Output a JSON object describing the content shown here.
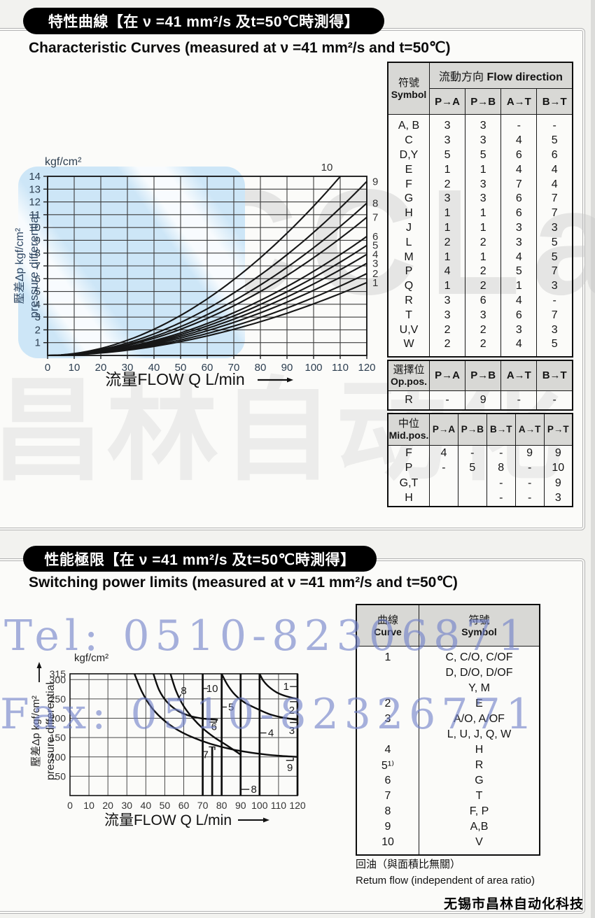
{
  "page": {
    "footer": "无锡市昌林自动化科技"
  },
  "watermarks": {
    "tel": "Tel: 0510-82306871",
    "fax": "Fax: 0510-82326771",
    "logo_en": "CCLair",
    "logo_cjk": "昌林自动化",
    "blue_text_color": "#7080c8",
    "patch_color": "#cde6f7"
  },
  "section1": {
    "pill": "特性曲線【在 ν =41 mm²/s 及t=50℃時測得】",
    "subtitle": "Characteristic Curves  (measured at ν =41 mm²/s and t=50℃)",
    "flow_table": {
      "symbol_zh": "符號",
      "symbol_en": "Symbol",
      "direction_zh": "流動方向",
      "direction_en": "Flow direction",
      "directions": [
        "P→A",
        "P→B",
        "A→T",
        "B→T"
      ],
      "rows": [
        [
          "A, B",
          "3",
          "3",
          "-",
          "-"
        ],
        [
          "C",
          "3",
          "3",
          "4",
          "5"
        ],
        [
          "D,Y",
          "5",
          "5",
          "6",
          "6"
        ],
        [
          "E",
          "1",
          "1",
          "4",
          "4"
        ],
        [
          "F",
          "2",
          "3",
          "7",
          "4"
        ],
        [
          "G",
          "3",
          "3",
          "6",
          "7"
        ],
        [
          "H",
          "1",
          "1",
          "6",
          "7"
        ],
        [
          "J",
          "1",
          "1",
          "3",
          "3"
        ],
        [
          "L",
          "2",
          "2",
          "3",
          "5"
        ],
        [
          "M",
          "1",
          "1",
          "4",
          "5"
        ],
        [
          "P",
          "4",
          "2",
          "5",
          "7"
        ],
        [
          "Q",
          "1",
          "2",
          "1",
          "3"
        ],
        [
          "R",
          "3",
          "6",
          "4",
          "-"
        ],
        [
          "T",
          "3",
          "3",
          "6",
          "7"
        ],
        [
          "U,V",
          "2",
          "2",
          "3",
          "3"
        ],
        [
          "W",
          "2",
          "2",
          "4",
          "5"
        ]
      ],
      "op_zh": "選擇位",
      "op_en": "Op.pos.",
      "op_directions": [
        "P→A",
        "P→B",
        "A→T",
        "B→T"
      ],
      "op_rows": [
        [
          "R",
          "-",
          "9",
          "-",
          "-"
        ]
      ],
      "mid_zh": "中位",
      "mid_en": "Mid.pos.",
      "mid_directions": [
        "P→A",
        "P→B",
        "B→T",
        "A→T",
        "P→T"
      ],
      "mid_rows": [
        [
          "F",
          "4",
          "-",
          "-",
          "9",
          "9"
        ],
        [
          "P",
          "-",
          "5",
          "8",
          "-",
          "10"
        ],
        [
          "G,T",
          "",
          "",
          "-",
          "-",
          "9"
        ],
        [
          "H",
          "",
          "",
          "-",
          "-",
          "3"
        ]
      ]
    }
  },
  "section2": {
    "pill": "性能極限【在 ν =41 mm²/s 及t=50℃時測得】",
    "subtitle": "Switching power limits  (measured at ν =41 mm²/s and t=50℃)",
    "curve_table": {
      "curve_zh": "曲線",
      "curve_en": "Curve",
      "symbol_zh": "符號",
      "symbol_en": "Symbol",
      "rows": [
        [
          "1",
          "C, C/O, C/OF"
        ],
        [
          "",
          "D, D/O, D/OF"
        ],
        [
          "",
          "Y, M"
        ],
        [
          "2",
          "E"
        ],
        [
          "3",
          "A/O, A/OF"
        ],
        [
          "",
          "L, U, J, Q, W"
        ],
        [
          "4",
          "H"
        ],
        [
          "5¹⁾",
          "R"
        ],
        [
          "6",
          "G"
        ],
        [
          "7",
          "T"
        ],
        [
          "8",
          "F, P"
        ],
        [
          "9",
          "A,B"
        ],
        [
          "10",
          "V"
        ]
      ],
      "note_zh": "回油（與面積比無關）",
      "note_en": "Retum flow (independent of area ratio)"
    }
  },
  "chart_data": [
    {
      "id": "characteristic-curves",
      "type": "line",
      "title": "Characteristic Curves",
      "xlabel": "流量FLOW Q L/min",
      "ylabel_unit": "kgf/cm²",
      "ylabel_zh": "壓差Δp kgf/cm²",
      "ylabel_en": "pressure differential",
      "xlim": [
        0,
        120
      ],
      "ylim": [
        0,
        14
      ],
      "xticks": [
        0,
        10,
        20,
        30,
        40,
        50,
        60,
        70,
        80,
        90,
        100,
        110,
        120
      ],
      "yticks": [
        1,
        2,
        3,
        4,
        5,
        6,
        7,
        8,
        9,
        10,
        11,
        12,
        13,
        14
      ],
      "exponent": 1.9,
      "x_samples": [
        0,
        20,
        40,
        60,
        80,
        100,
        120
      ],
      "series": [
        {
          "name": "1",
          "E120": 5.7,
          "values": [
            0,
            0.2,
            0.7,
            1.5,
            2.6,
            4.0,
            5.7
          ]
        },
        {
          "name": "2",
          "E120": 6.4,
          "values": [
            0,
            0.2,
            0.8,
            1.7,
            3.0,
            4.5,
            6.4
          ]
        },
        {
          "name": "3",
          "E120": 7.2,
          "values": [
            0,
            0.2,
            0.9,
            1.9,
            3.3,
            5.1,
            7.2
          ]
        },
        {
          "name": "4",
          "E120": 7.9,
          "values": [
            0,
            0.3,
            1.0,
            2.1,
            3.7,
            5.6,
            7.9
          ]
        },
        {
          "name": "5",
          "E120": 8.6,
          "values": [
            0,
            0.3,
            1.1,
            2.3,
            4.0,
            6.1,
            8.6
          ]
        },
        {
          "name": "6",
          "E120": 9.3,
          "values": [
            0,
            0.3,
            1.2,
            2.5,
            4.3,
            6.6,
            9.3
          ]
        },
        {
          "name": "7",
          "E120": 10.8,
          "values": [
            0,
            0.4,
            1.3,
            2.9,
            5.0,
            7.6,
            10.8
          ]
        },
        {
          "name": "8",
          "E120": 11.9,
          "values": [
            0,
            0.4,
            1.5,
            3.2,
            5.5,
            8.4,
            11.9
          ]
        },
        {
          "name": "9",
          "E120": 13.6,
          "values": [
            0,
            0.5,
            1.7,
            3.6,
            6.3,
            9.6,
            13.6
          ]
        },
        {
          "name": "10",
          "E120": 16.5,
          "clip": 14,
          "values": [
            0,
            0.5,
            2.0,
            4.4,
            7.6,
            11.7,
            14
          ]
        }
      ]
    },
    {
      "id": "switching-power-limits",
      "type": "line",
      "title": "Switching power limits",
      "xlabel": "流量FLOW Q L/min",
      "ylabel_unit": "kgf/cm²",
      "ylabel_zh": "壓差Δp kgf/cm²",
      "ylabel_en": "pressure differential",
      "xlim": [
        0,
        120
      ],
      "ylim": [
        0,
        315
      ],
      "xticks": [
        0,
        10,
        20,
        30,
        40,
        50,
        60,
        70,
        80,
        90,
        100,
        110,
        120
      ],
      "yticks": [
        50,
        100,
        150,
        200,
        250,
        300,
        315
      ],
      "vlines": [
        {
          "name": "10",
          "Q": 70,
          "p0": 0,
          "p1": 315
        },
        {
          "name": "7",
          "Q": 75,
          "p0": 0,
          "p1": 126
        },
        {
          "name": "5",
          "Q": 80,
          "p0": 0,
          "p1": 315
        },
        {
          "name": "8",
          "Q": 90,
          "p0": 0,
          "p1": 315
        },
        {
          "name": "4",
          "Q": 100,
          "p0": 0,
          "p1": 315
        },
        {
          "name": "limit",
          "Q": 120,
          "p0": 0,
          "p1": 315
        }
      ],
      "curves": [
        {
          "name": "9",
          "points": [
            [
              34,
              315
            ],
            [
              38,
              268
            ],
            [
              43,
              228
            ],
            [
              49,
              197
            ],
            [
              56,
              172
            ],
            [
              64,
              152
            ],
            [
              74,
              134
            ],
            [
              86,
              119
            ],
            [
              100,
              108
            ],
            [
              110,
              103
            ],
            [
              120,
              100
            ]
          ]
        },
        {
          "name": "8",
          "points": [
            [
              53,
              315
            ],
            [
              56,
              270
            ],
            [
              60,
              231
            ],
            [
              65,
              199
            ],
            [
              70,
              174
            ],
            [
              76,
              151
            ],
            [
              83,
              129
            ],
            [
              90,
              106
            ]
          ]
        },
        {
          "name": "6",
          "points": [
            [
              44,
              315
            ],
            [
              47,
              273
            ],
            [
              51,
              243
            ],
            [
              56,
              222
            ],
            [
              62,
              208
            ],
            [
              69,
              200
            ],
            [
              78,
              196
            ]
          ]
        },
        {
          "name": "3",
          "points": [
            [
              80,
              315
            ],
            [
              83,
              287
            ],
            [
              87,
              261
            ],
            [
              92,
              241
            ],
            [
              98,
              226
            ],
            [
              105,
              211
            ],
            [
              112,
              202
            ],
            [
              120,
              196
            ]
          ]
        },
        {
          "name": "1",
          "points": [
            [
              100,
              315
            ],
            [
              102,
              297
            ],
            [
              105,
              281
            ],
            [
              109,
              267
            ],
            [
              114,
              257
            ],
            [
              120,
              250
            ]
          ]
        }
      ],
      "labels": [
        {
          "text": "8",
          "Q": 60,
          "p": 272,
          "leader": [
            [
              58.6,
              262
            ],
            [
              56.8,
              247
            ]
          ]
        },
        {
          "text": "10",
          "Q": 75,
          "p": 277,
          "leader": [
            [
              72.7,
              277
            ],
            [
              70.2,
              277
            ]
          ]
        },
        {
          "text": "5",
          "Q": 85,
          "p": 229,
          "leader": [
            [
              82.7,
              229
            ],
            [
              80.2,
              229
            ]
          ]
        },
        {
          "text": "6",
          "Q": 76,
          "p": 178
        },
        {
          "text": "7",
          "Q": 71.5,
          "p": 106
        },
        {
          "text": "4",
          "Q": 106,
          "p": 162,
          "leader": [
            [
              103.6,
              162
            ],
            [
              100.2,
              162
            ]
          ]
        },
        {
          "text": "8",
          "Q": 97,
          "p": 16,
          "leader": [
            [
              94.6,
              16
            ],
            [
              90.2,
              16
            ]
          ]
        },
        {
          "text": "1",
          "Q": 114,
          "p": 282,
          "leader": [
            [
              116,
              282
            ],
            [
              119.8,
              282
            ]
          ]
        },
        {
          "text": "2",
          "Q": 117,
          "p": 221
        },
        {
          "text": "3",
          "Q": 117,
          "p": 168
        },
        {
          "text": "9",
          "Q": 116,
          "p": 72
        }
      ],
      "brackets": [
        [
          [
            116,
            243
          ],
          [
            119.8,
            243
          ],
          [
            119.8,
            248.5
          ]
        ],
        [
          [
            116,
            189
          ],
          [
            119.8,
            189
          ],
          [
            119.8,
            194.5
          ]
        ],
        [
          [
            114,
            91
          ],
          [
            117.8,
            91
          ],
          [
            117.8,
            98
          ]
        ],
        [
          [
            73.5,
            190
          ],
          [
            77.2,
            190
          ],
          [
            77.2,
            195.5
          ]
        ],
        [
          [
            73.2,
            126
          ],
          [
            76.4,
            126
          ],
          [
            76.4,
            118
          ]
        ]
      ]
    }
  ]
}
